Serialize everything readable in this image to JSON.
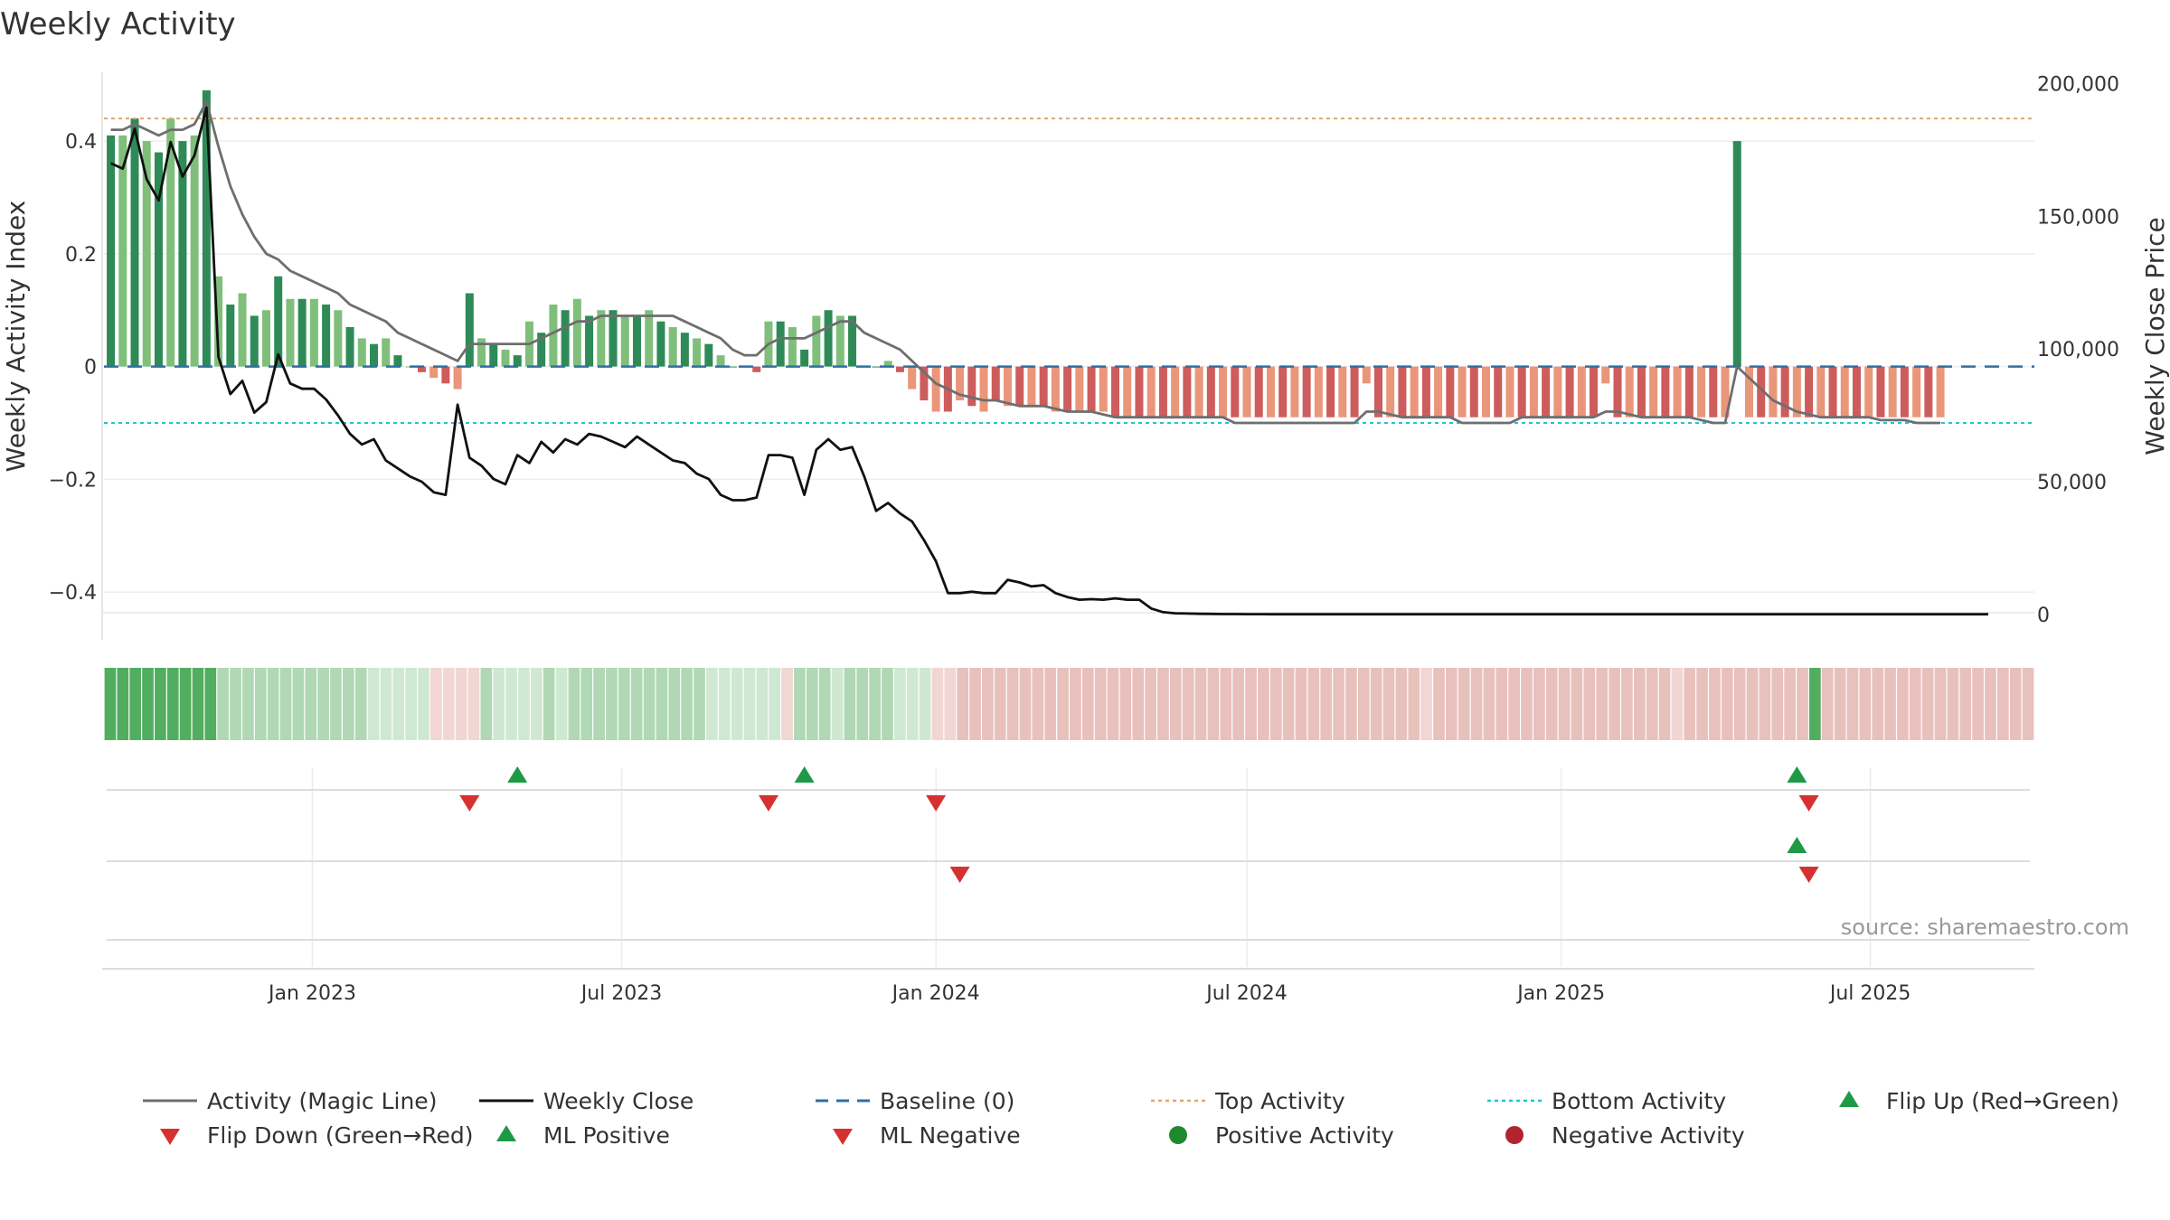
{
  "chart_data": {
    "type": "bar",
    "title": "Weekly Activity",
    "ylabel_left": "Weekly Activity Index",
    "ylabel_right": "Weekly Close Price",
    "source": "source: sharemaestro.com",
    "x_ticks": [
      {
        "label": "Jan 2023",
        "date": "2023-01-01"
      },
      {
        "label": "Jul 2023",
        "date": "2023-07-01"
      },
      {
        "label": "Jan 2024",
        "date": "2024-01-01"
      },
      {
        "label": "Jul 2024",
        "date": "2024-07-01"
      },
      {
        "label": "Jan 2025",
        "date": "2025-01-01"
      },
      {
        "label": "Jul 2025",
        "date": "2025-07-01"
      }
    ],
    "x_range": [
      "2022-09-01",
      "2025-10-05"
    ],
    "y_left_ticks": [
      {
        "label": "0.4",
        "value": 0.4
      },
      {
        "label": "0.2",
        "value": 0.2
      },
      {
        "label": "0",
        "value": 0
      },
      {
        "label": "−0.2",
        "value": -0.2
      },
      {
        "label": "−0.4",
        "value": -0.4
      }
    ],
    "ylim_left": [
      -0.48,
      0.53
    ],
    "y_right_ticks": [
      {
        "label": "200,000",
        "value": 200000
      },
      {
        "label": "150,000",
        "value": 150000
      },
      {
        "label": "100,000",
        "value": 100000
      },
      {
        "label": "50,000",
        "value": 50000
      },
      {
        "label": "0",
        "value": 0
      }
    ],
    "ylim_right": [
      -8600,
      206000
    ],
    "top_activity": 0.44,
    "bottom_activity": -0.1,
    "baseline": 0,
    "weeks": {
      "start": "2022-09-05",
      "activity": [
        0.41,
        0.41,
        0.44,
        0.4,
        0.38,
        0.44,
        0.4,
        0.41,
        0.49,
        0.16,
        0.11,
        0.13,
        0.09,
        0.1,
        0.16,
        0.12,
        0.12,
        0.12,
        0.11,
        0.1,
        0.07,
        0.05,
        0.04,
        0.05,
        0.02,
        0,
        -0.01,
        -0.02,
        -0.03,
        -0.04,
        0.13,
        0.05,
        0.04,
        0.03,
        0.02,
        0.08,
        0.06,
        0.11,
        0.1,
        0.12,
        0.09,
        0.1,
        0.1,
        0.09,
        0.09,
        0.1,
        0.08,
        0.07,
        0.06,
        0.05,
        0.04,
        0.02,
        0,
        0,
        -0.01,
        0.08,
        0.08,
        0.07,
        0.03,
        0.09,
        0.1,
        0.09,
        0.09,
        0,
        0,
        0.01,
        -0.01,
        -0.04,
        -0.06,
        -0.08,
        -0.08,
        -0.06,
        -0.07,
        -0.08,
        -0.06,
        -0.07,
        -0.07,
        -0.07,
        -0.07,
        -0.08,
        -0.08,
        -0.08,
        -0.08,
        -0.08,
        -0.09,
        -0.09,
        -0.09,
        -0.09,
        -0.09,
        -0.09,
        -0.09,
        -0.09,
        -0.09,
        -0.09,
        -0.09,
        -0.09,
        -0.09,
        -0.09,
        -0.09,
        -0.09,
        -0.09,
        -0.09,
        -0.09,
        -0.09,
        -0.09,
        -0.03,
        -0.09,
        -0.09,
        -0.09,
        -0.09,
        -0.09,
        -0.09,
        -0.09,
        -0.09,
        -0.09,
        -0.09,
        -0.09,
        -0.09,
        -0.09,
        -0.09,
        -0.09,
        -0.09,
        -0.09,
        -0.09,
        -0.09,
        -0.03,
        -0.09,
        -0.09,
        -0.09,
        -0.09,
        -0.09,
        -0.09,
        -0.09,
        -0.09,
        -0.09,
        -0.09,
        0.4,
        -0.09,
        -0.09,
        -0.09,
        -0.09,
        -0.09,
        -0.09,
        -0.09,
        -0.09,
        -0.09,
        -0.09,
        -0.09,
        -0.09,
        -0.09,
        -0.09,
        -0.09,
        -0.09,
        -0.09
      ],
      "magic_line": [
        0.42,
        0.42,
        0.43,
        0.42,
        0.41,
        0.42,
        0.42,
        0.43,
        0.47,
        0.39,
        0.32,
        0.27,
        0.23,
        0.2,
        0.19,
        0.17,
        0.16,
        0.15,
        0.14,
        0.13,
        0.11,
        0.1,
        0.09,
        0.08,
        0.06,
        0.05,
        0.04,
        0.03,
        0.02,
        0.01,
        0.04,
        0.04,
        0.04,
        0.04,
        0.04,
        0.04,
        0.05,
        0.06,
        0.07,
        0.08,
        0.08,
        0.09,
        0.09,
        0.09,
        0.09,
        0.09,
        0.09,
        0.09,
        0.08,
        0.07,
        0.06,
        0.05,
        0.03,
        0.02,
        0.02,
        0.04,
        0.05,
        0.05,
        0.05,
        0.06,
        0.07,
        0.08,
        0.08,
        0.06,
        0.05,
        0.04,
        0.03,
        0.01,
        -0.01,
        -0.03,
        -0.04,
        -0.05,
        -0.055,
        -0.06,
        -0.06,
        -0.065,
        -0.07,
        -0.07,
        -0.07,
        -0.075,
        -0.08,
        -0.08,
        -0.08,
        -0.085,
        -0.09,
        -0.09,
        -0.09,
        -0.09,
        -0.09,
        -0.09,
        -0.09,
        -0.09,
        -0.09,
        -0.09,
        -0.1,
        -0.1,
        -0.1,
        -0.1,
        -0.1,
        -0.1,
        -0.1,
        -0.1,
        -0.1,
        -0.1,
        -0.1,
        -0.08,
        -0.08,
        -0.085,
        -0.09,
        -0.09,
        -0.09,
        -0.09,
        -0.09,
        -0.1,
        -0.1,
        -0.1,
        -0.1,
        -0.1,
        -0.09,
        -0.09,
        -0.09,
        -0.09,
        -0.09,
        -0.09,
        -0.09,
        -0.08,
        -0.08,
        -0.085,
        -0.09,
        -0.09,
        -0.09,
        -0.09,
        -0.09,
        -0.095,
        -0.1,
        -0.1,
        0,
        -0.02,
        -0.04,
        -0.06,
        -0.07,
        -0.08,
        -0.085,
        -0.09,
        -0.09,
        -0.09,
        -0.09,
        -0.09,
        -0.095,
        -0.095,
        -0.095,
        -0.1,
        -0.1,
        -0.1
      ],
      "close": [
        170000,
        168000,
        183000,
        164000,
        156000,
        178000,
        165000,
        173000,
        191000,
        97000,
        83000,
        88000,
        76000,
        80000,
        98000,
        87000,
        85000,
        85000,
        81000,
        75000,
        68000,
        64000,
        66000,
        58000,
        55000,
        52000,
        50000,
        46000,
        45000,
        79000,
        59000,
        56000,
        51000,
        49000,
        60000,
        57000,
        65000,
        61000,
        66000,
        64000,
        68000,
        67000,
        65000,
        63000,
        67000,
        64000,
        61000,
        58000,
        57000,
        53000,
        51000,
        45000,
        43000,
        43000,
        44000,
        60000,
        60000,
        59000,
        45000,
        62000,
        66000,
        62000,
        63000,
        52000,
        39000,
        42000,
        38000,
        35000,
        28000,
        20000,
        8000,
        8000,
        8500,
        8000,
        8000,
        13000,
        12000,
        10500,
        11000,
        8000,
        6500,
        5500,
        5700,
        5500,
        6000,
        5500,
        5500,
        2200,
        800,
        400,
        300,
        200,
        150,
        100,
        80,
        50,
        40,
        30,
        20,
        20,
        20,
        20,
        20,
        20,
        20,
        20,
        20,
        20,
        20,
        20,
        20,
        20,
        20,
        20,
        20,
        20,
        20,
        20,
        20,
        20,
        20,
        20,
        20,
        20,
        20,
        20,
        20,
        20,
        20,
        20,
        20,
        20,
        20,
        20,
        20,
        20,
        20,
        20,
        20,
        20,
        20,
        20,
        20,
        20,
        20,
        20,
        20,
        20,
        20,
        20,
        20,
        20,
        20,
        20,
        20,
        20,
        20,
        20
      ]
    },
    "flip_up": [
      "2023-05-01",
      "2023-10-16",
      "2025-05-19"
    ],
    "flip_down": [
      "2023-04-03",
      "2023-09-25",
      "2024-01-01",
      "2025-05-26"
    ],
    "ml_positive": [
      "2025-05-19"
    ],
    "ml_negative": [
      "2024-01-15",
      "2025-05-26"
    ],
    "legend": [
      {
        "label": "Activity (Magic Line)",
        "color": "#6e6e6e",
        "marker": "line"
      },
      {
        "label": "Weekly Close",
        "color": "#111111",
        "marker": "line"
      },
      {
        "label": "Baseline (0)",
        "color": "#2f6ea3",
        "marker": "dashed"
      },
      {
        "label": "Top Activity",
        "color": "#e2a66a",
        "marker": "dotted"
      },
      {
        "label": "Bottom Activity",
        "color": "#22c4cc",
        "marker": "dotted"
      },
      {
        "label": "Flip Up (Red→Green)",
        "color": "#1e9a46",
        "marker": "triangle-up"
      },
      {
        "label": "Flip Down (Green→Red)",
        "color": "#d63131",
        "marker": "triangle-down"
      },
      {
        "label": "ML Positive",
        "color": "#1e9a46",
        "marker": "triangle-up"
      },
      {
        "label": "ML Negative",
        "color": "#d63131",
        "marker": "triangle-down"
      },
      {
        "label": "Positive Activity",
        "color": "#1e8a2e",
        "marker": "circle"
      },
      {
        "label": "Negative Activity",
        "color": "#b3232f",
        "marker": "circle"
      }
    ],
    "colors": {
      "pos_strong": "#2e8b57",
      "pos_light": "#7fbf7b",
      "neg_strong": "#cd5c5c",
      "neg_light": "#e9967a",
      "magic_line": "#6e6e6e",
      "close": "#111111"
    }
  }
}
